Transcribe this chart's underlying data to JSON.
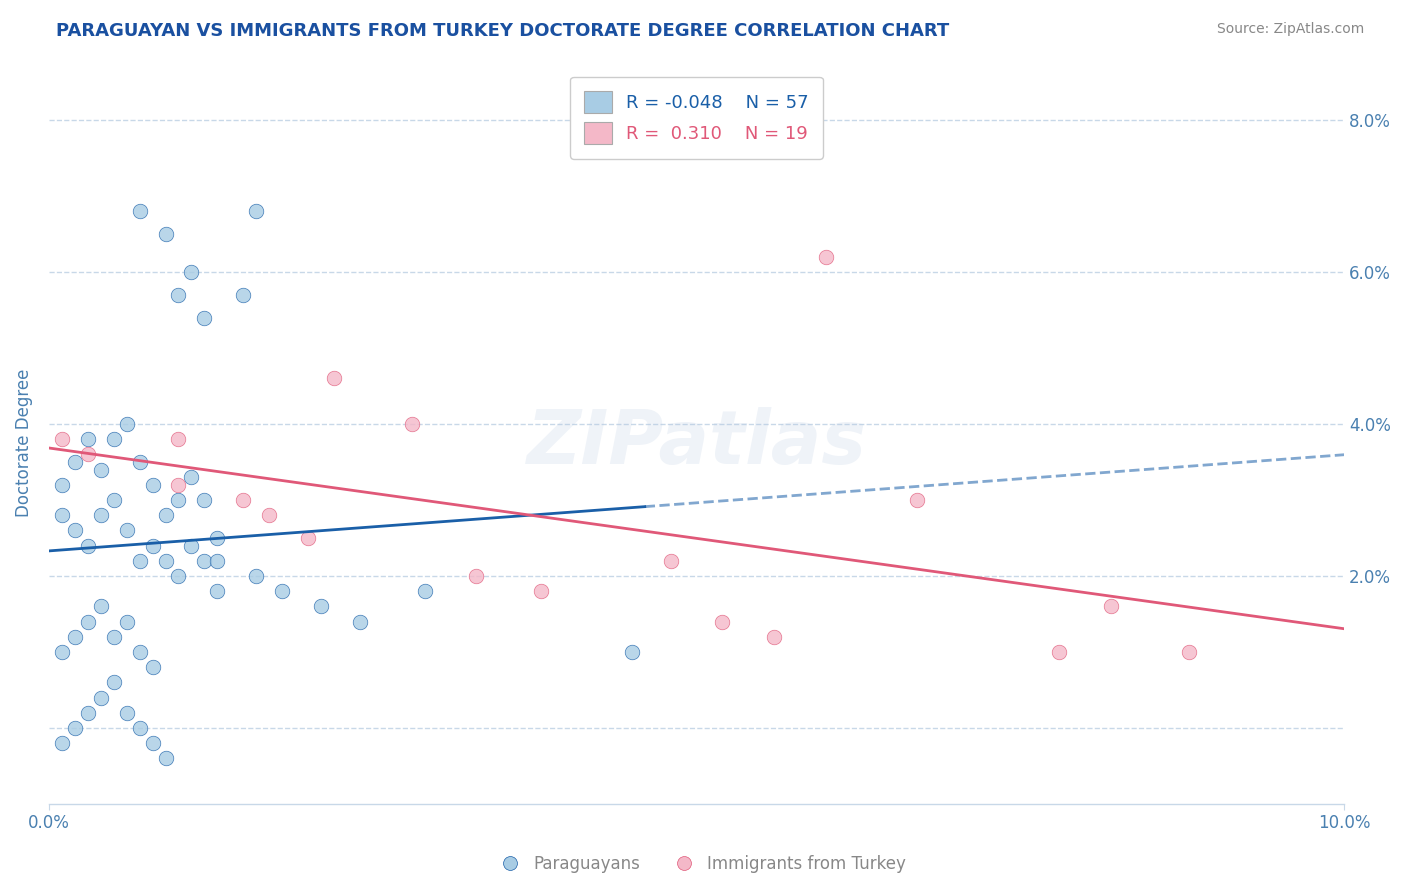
{
  "title": "PARAGUAYAN VS IMMIGRANTS FROM TURKEY DOCTORATE DEGREE CORRELATION CHART",
  "source": "Source: ZipAtlas.com",
  "ylabel": "Doctorate Degree",
  "xlim": [
    0.0,
    0.1
  ],
  "ylim": [
    -0.01,
    0.085
  ],
  "r_blue": -0.048,
  "n_blue": 57,
  "r_pink": 0.31,
  "n_pink": 19,
  "blue_color": "#a8cce4",
  "pink_color": "#f4b8c8",
  "blue_line_color": "#1a5fa8",
  "pink_line_color": "#e05878",
  "watermark": "ZIPatlas",
  "blue_x": [
    0.007,
    0.009,
    0.011,
    0.016,
    0.01,
    0.012,
    0.015,
    0.001,
    0.002,
    0.003,
    0.004,
    0.005,
    0.006,
    0.007,
    0.008,
    0.009,
    0.01,
    0.011,
    0.012,
    0.013,
    0.001,
    0.002,
    0.003,
    0.004,
    0.005,
    0.006,
    0.007,
    0.008,
    0.009,
    0.01,
    0.011,
    0.012,
    0.013,
    0.001,
    0.002,
    0.003,
    0.004,
    0.005,
    0.006,
    0.007,
    0.008,
    0.001,
    0.002,
    0.003,
    0.004,
    0.005,
    0.006,
    0.007,
    0.008,
    0.009,
    0.013,
    0.016,
    0.018,
    0.021,
    0.024,
    0.029,
    0.045
  ],
  "blue_y": [
    0.068,
    0.065,
    0.06,
    0.068,
    0.057,
    0.054,
    0.057,
    0.032,
    0.035,
    0.038,
    0.034,
    0.038,
    0.04,
    0.035,
    0.032,
    0.028,
    0.03,
    0.033,
    0.03,
    0.025,
    0.028,
    0.026,
    0.024,
    0.028,
    0.03,
    0.026,
    0.022,
    0.024,
    0.022,
    0.02,
    0.024,
    0.022,
    0.018,
    0.01,
    0.012,
    0.014,
    0.016,
    0.012,
    0.014,
    0.01,
    0.008,
    -0.002,
    0.0,
    0.002,
    0.004,
    0.006,
    0.002,
    0.0,
    -0.002,
    -0.004,
    0.022,
    0.02,
    0.018,
    0.016,
    0.014,
    0.018,
    0.01
  ],
  "pink_x": [
    0.001,
    0.003,
    0.01,
    0.01,
    0.015,
    0.017,
    0.02,
    0.022,
    0.028,
    0.033,
    0.038,
    0.048,
    0.052,
    0.056,
    0.06,
    0.067,
    0.078,
    0.082,
    0.088
  ],
  "pink_y": [
    0.038,
    0.036,
    0.032,
    0.038,
    0.03,
    0.028,
    0.025,
    0.046,
    0.04,
    0.02,
    0.018,
    0.022,
    0.014,
    0.012,
    0.062,
    0.03,
    0.01,
    0.016,
    0.01
  ],
  "background_color": "#ffffff",
  "grid_color": "#c8d8e8",
  "title_color": "#1a50a0",
  "axis_label_color": "#4a80b0",
  "tick_label_color": "#4a80b0"
}
